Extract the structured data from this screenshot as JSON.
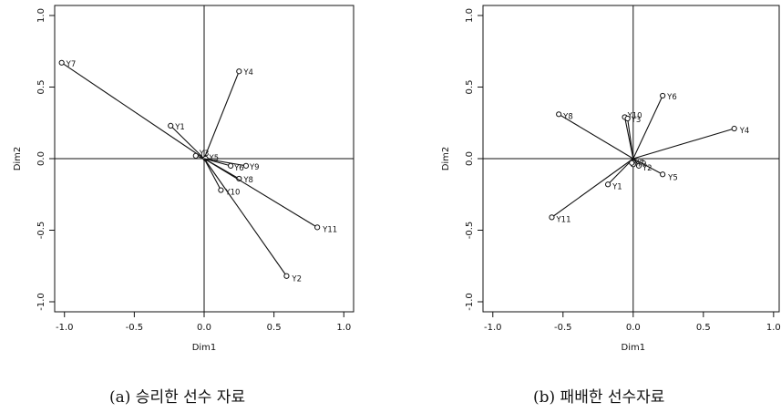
{
  "chart_data": [
    {
      "type": "biplot",
      "caption": "(a) 승리한 선수 자료",
      "xlabel": "Dim1",
      "ylabel": "Dim2",
      "xlim": [
        -1.0,
        1.0
      ],
      "ylim": [
        -1.0,
        1.0
      ],
      "xticks": [
        "-1.0",
        "-0.5",
        "0.0",
        "0.5",
        "1.0"
      ],
      "yticks": [
        "-1.0",
        "-0.5",
        "0.0",
        "0.5",
        "1.0"
      ],
      "grid": false,
      "points": [
        {
          "label": "Y7",
          "x": -1.02,
          "y": 0.67
        },
        {
          "label": "Y1",
          "x": -0.24,
          "y": 0.23
        },
        {
          "label": "Y4",
          "x": 0.25,
          "y": 0.61
        },
        {
          "label": "Y3",
          "x": -0.06,
          "y": 0.02
        },
        {
          "label": "Y5",
          "x": 0.01,
          "y": 0.0
        },
        {
          "label": "Y6",
          "x": 0.19,
          "y": -0.05
        },
        {
          "label": "Y9",
          "x": 0.3,
          "y": -0.05
        },
        {
          "label": "Y8",
          "x": 0.25,
          "y": -0.14
        },
        {
          "label": "Y10",
          "x": 0.12,
          "y": -0.22
        },
        {
          "label": "Y11",
          "x": 0.81,
          "y": -0.48
        },
        {
          "label": "Y2",
          "x": 0.59,
          "y": -0.82
        }
      ]
    },
    {
      "type": "biplot",
      "caption": "(b) 패배한 선수자료",
      "xlabel": "Dim1",
      "ylabel": "Dim2",
      "xlim": [
        -1.0,
        1.0
      ],
      "ylim": [
        -1.0,
        1.0
      ],
      "xticks": [
        "-1.0",
        "-0.5",
        "0.0",
        "0.5",
        "1.0"
      ],
      "yticks": [
        "-1.0",
        "-0.5",
        "0.0",
        "0.5",
        "1.0"
      ],
      "grid": false,
      "points": [
        {
          "label": "Y8",
          "x": -0.53,
          "y": 0.31
        },
        {
          "label": "Y6",
          "x": 0.21,
          "y": 0.44
        },
        {
          "label": "Y10",
          "x": -0.06,
          "y": 0.29
        },
        {
          "label": "Y3",
          "x": -0.04,
          "y": 0.28
        },
        {
          "label": "Y4",
          "x": 0.72,
          "y": 0.21
        },
        {
          "label": "Y5",
          "x": 0.21,
          "y": -0.11
        },
        {
          "label": "Y1",
          "x": -0.18,
          "y": -0.18
        },
        {
          "label": "Y11",
          "x": -0.58,
          "y": -0.41
        },
        {
          "label": "Y2",
          "x": 0.04,
          "y": -0.05
        },
        {
          "label": "Y9",
          "x": 0.0,
          "y": -0.04
        },
        {
          "label": "Y7",
          "x": -0.01,
          "y": -0.03
        }
      ]
    }
  ]
}
